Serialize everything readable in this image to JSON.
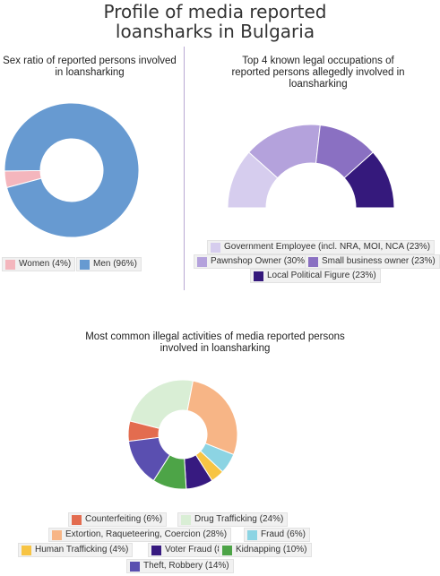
{
  "page_title": "Profile of media reported loansharks in Bulgaria",
  "chart_data": [
    {
      "type": "pie",
      "donut": true,
      "title": "Sex ratio of reported persons involved in loansharking",
      "legend_position": "bottom",
      "slices": [
        {
          "name": "Women",
          "label": "Women (4%)",
          "value": 4,
          "color": "#f4b6bd"
        },
        {
          "name": "Men",
          "label": "Men (96%)",
          "value": 96,
          "color": "#679ad1"
        }
      ]
    },
    {
      "type": "pie",
      "donut": true,
      "half": true,
      "title": "Top 4 known legal occupations of reported persons allegedly involved in loansharking",
      "legend_position": "bottom",
      "slices": [
        {
          "name": "Government Employee (incl. NRA, MOI, NCA)",
          "label": "Government Employee (incl. NRA, MOI, NCA (23%)",
          "value": 23,
          "color": "#d6cdee"
        },
        {
          "name": "Pawnshop Owner",
          "label": "Pawnshop Owner (30%)",
          "value": 30,
          "color": "#b4a2dc"
        },
        {
          "name": "Small business owner",
          "label": "Small business owner (23%)",
          "value": 23,
          "color": "#8a70c2"
        },
        {
          "name": "Local Political Figure",
          "label": "Local Political Figure (23%)",
          "value": 23,
          "color": "#35197c"
        }
      ]
    },
    {
      "type": "pie",
      "donut": true,
      "title": "Most common illegal activities of media reported persons involved in loansharking",
      "legend_position": "bottom",
      "slices": [
        {
          "name": "Counterfeiting",
          "label": "Counterfeiting (6%)",
          "value": 6,
          "color": "#e36c4f"
        },
        {
          "name": "Drug Trafficking",
          "label": "Drug Trafficking (24%)",
          "value": 24,
          "color": "#d9eed5"
        },
        {
          "name": "Extortion, Raqueteering, Coercion",
          "label": "Extortion, Raqueteering, Coercion (28%)",
          "value": 28,
          "color": "#f7b586"
        },
        {
          "name": "Fraud",
          "label": "Fraud (6%)",
          "value": 6,
          "color": "#8cd4e3"
        },
        {
          "name": "Human Trafficking",
          "label": "Human Trafficking (4%)",
          "value": 4,
          "color": "#f7c444"
        },
        {
          "name": "Voter Fraud",
          "label": "Voter Fraud (8%)",
          "value": 8,
          "color": "#371a80"
        },
        {
          "name": "Kidnapping",
          "label": "Kidnapping (10%)",
          "value": 10,
          "color": "#4da447"
        },
        {
          "name": "Theft, Robbery",
          "label": "Theft, Robbery (14%)",
          "value": 14,
          "color": "#5a4fb0"
        }
      ]
    }
  ]
}
